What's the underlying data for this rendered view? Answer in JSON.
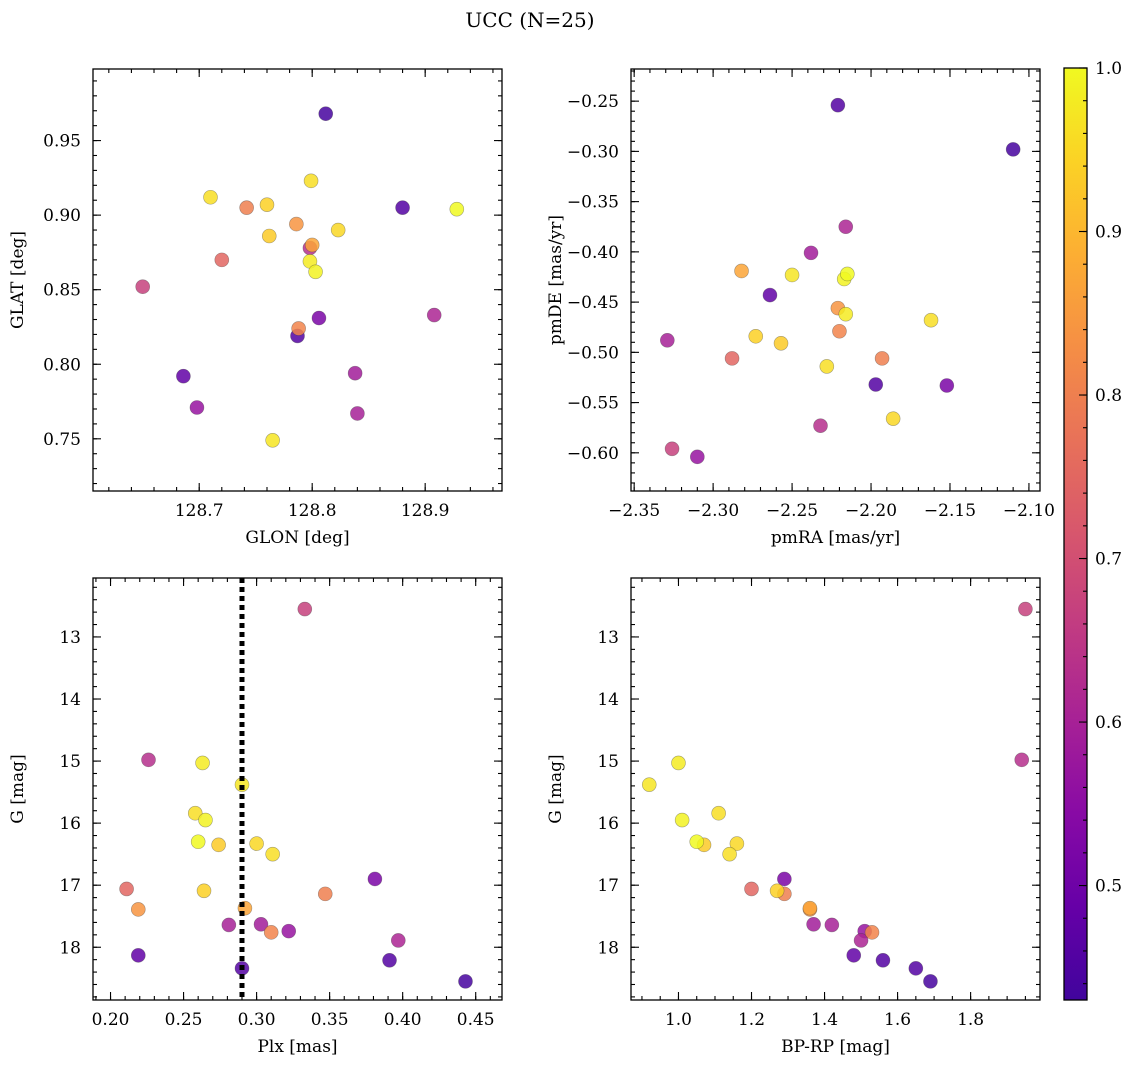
{
  "chart_data": [
    {
      "type": "scatter",
      "title": "UCC (N=25)",
      "colorbar": {
        "ticks": [
          "0.5",
          "0.6",
          "0.7",
          "0.8",
          "0.9",
          "1.0"
        ],
        "range": [
          0.43,
          1.0
        ],
        "colormap": "plasma"
      },
      "points": [
        {
          "glon": 128.812,
          "glat": 0.968,
          "pmra": -2.11,
          "pmde": -0.298,
          "plx": 0.443,
          "g": 18.55,
          "bprp": 1.69,
          "p": 0.44
        },
        {
          "glon": 128.88,
          "glat": 0.905,
          "pmra": -2.221,
          "pmde": -0.254,
          "plx": 0.391,
          "g": 18.21,
          "bprp": 1.56,
          "p": 0.46
        },
        {
          "glon": 128.787,
          "glat": 0.819,
          "pmra": -2.197,
          "pmde": -0.532,
          "plx": 0.29,
          "g": 18.34,
          "bprp": 1.65,
          "p": 0.46
        },
        {
          "glon": 128.686,
          "glat": 0.792,
          "pmra": -2.264,
          "pmde": -0.443,
          "plx": 0.219,
          "g": 18.13,
          "bprp": 1.48,
          "p": 0.48
        },
        {
          "glon": 128.806,
          "glat": 0.831,
          "pmra": -2.152,
          "pmde": -0.533,
          "plx": 0.381,
          "g": 16.9,
          "bprp": 1.29,
          "p": 0.52
        },
        {
          "glon": 128.698,
          "glat": 0.771,
          "pmra": -2.31,
          "pmde": -0.604,
          "plx": 0.322,
          "g": 17.74,
          "bprp": 1.51,
          "p": 0.57
        },
        {
          "glon": 128.838,
          "glat": 0.794,
          "pmra": -2.238,
          "pmde": -0.401,
          "plx": 0.303,
          "g": 17.63,
          "bprp": 1.37,
          "p": 0.59
        },
        {
          "glon": 128.84,
          "glat": 0.767,
          "pmra": -2.329,
          "pmde": -0.488,
          "plx": 0.281,
          "g": 17.64,
          "bprp": 1.42,
          "p": 0.6
        },
        {
          "glon": 128.908,
          "glat": 0.833,
          "pmra": -2.216,
          "pmde": -0.375,
          "plx": 0.397,
          "g": 17.89,
          "bprp": 1.5,
          "p": 0.61
        },
        {
          "glon": 128.798,
          "glat": 0.878,
          "pmra": -2.232,
          "pmde": -0.573,
          "plx": 0.226,
          "g": 14.98,
          "bprp": 1.94,
          "p": 0.63
        },
        {
          "glon": 128.65,
          "glat": 0.852,
          "pmra": -2.326,
          "pmde": -0.596,
          "plx": 0.333,
          "g": 12.55,
          "bprp": 1.95,
          "p": 0.67
        },
        {
          "glon": 128.72,
          "glat": 0.87,
          "pmra": -2.288,
          "pmde": -0.506,
          "plx": 0.211,
          "g": 17.06,
          "bprp": 1.2,
          "p": 0.75
        },
        {
          "glon": 128.742,
          "glat": 0.905,
          "pmra": -2.193,
          "pmde": -0.506,
          "plx": 0.347,
          "g": 17.14,
          "bprp": 1.29,
          "p": 0.8
        },
        {
          "glon": 128.788,
          "glat": 0.824,
          "pmra": -2.22,
          "pmde": -0.479,
          "plx": 0.31,
          "g": 17.76,
          "bprp": 1.53,
          "p": 0.81
        },
        {
          "glon": 128.786,
          "glat": 0.894,
          "pmra": -2.221,
          "pmde": -0.456,
          "plx": 0.219,
          "g": 17.39,
          "bprp": 1.36,
          "p": 0.84
        },
        {
          "glon": 128.8,
          "glat": 0.88,
          "pmra": -2.282,
          "pmde": -0.419,
          "plx": 0.292,
          "g": 17.37,
          "bprp": 1.36,
          "p": 0.87
        },
        {
          "glon": 128.762,
          "glat": 0.886,
          "pmra": -2.257,
          "pmde": -0.491,
          "plx": 0.274,
          "g": 16.35,
          "bprp": 1.07,
          "p": 0.93
        },
        {
          "glon": 128.76,
          "glat": 0.907,
          "pmra": -2.273,
          "pmde": -0.484,
          "plx": 0.264,
          "g": 17.09,
          "bprp": 1.27,
          "p": 0.94
        },
        {
          "glon": 128.823,
          "glat": 0.89,
          "pmra": -2.186,
          "pmde": -0.566,
          "plx": 0.3,
          "g": 16.33,
          "bprp": 1.16,
          "p": 0.95
        },
        {
          "glon": 128.71,
          "glat": 0.912,
          "pmra": -2.162,
          "pmde": -0.468,
          "plx": 0.258,
          "g": 15.84,
          "bprp": 1.11,
          "p": 0.96
        },
        {
          "glon": 128.799,
          "glat": 0.923,
          "pmra": -2.228,
          "pmde": -0.514,
          "plx": 0.311,
          "g": 16.5,
          "bprp": 1.14,
          "p": 0.96
        },
        {
          "glon": 128.765,
          "glat": 0.749,
          "pmra": -2.25,
          "pmde": -0.423,
          "plx": 0.29,
          "g": 15.38,
          "bprp": 0.92,
          "p": 0.97
        },
        {
          "glon": 128.798,
          "glat": 0.869,
          "pmra": -2.216,
          "pmde": -0.462,
          "plx": 0.263,
          "g": 15.03,
          "bprp": 1.0,
          "p": 0.98
        },
        {
          "glon": 128.803,
          "glat": 0.862,
          "pmra": -2.217,
          "pmde": -0.427,
          "plx": 0.265,
          "g": 15.95,
          "bprp": 1.01,
          "p": 0.99
        },
        {
          "glon": 128.928,
          "glat": 0.904,
          "pmra": -2.215,
          "pmde": -0.422,
          "plx": 0.26,
          "g": 16.3,
          "bprp": 1.05,
          "p": 1.0
        }
      ],
      "panels": [
        {
          "id": "glon-glat",
          "xkey": "glon",
          "ykey": "glat",
          "xlabel": "GLON [deg]",
          "ylabel": "GLAT [deg]",
          "xlim": [
            128.606,
            128.968
          ],
          "ylim": [
            0.715,
            0.998
          ],
          "yinvert": false,
          "xticks": [
            128.7,
            128.8,
            128.9
          ],
          "xtick_labels": [
            "128.7",
            "128.8",
            "128.9"
          ],
          "yticks": [
            0.75,
            0.8,
            0.85,
            0.9,
            0.95
          ],
          "ytick_labels": [
            "0.75",
            "0.80",
            "0.85",
            "0.90",
            "0.95"
          ],
          "xminor": 0.02,
          "yminor": 0.01
        },
        {
          "id": "pmra-pmde",
          "xkey": "pmra",
          "ykey": "pmde",
          "xlabel": "pmRA [mas/yr]",
          "ylabel": "pmDE [mas/yr]",
          "xlim": [
            -2.352,
            -2.093
          ],
          "ylim": [
            -0.638,
            -0.218
          ],
          "yinvert": false,
          "xticks": [
            -2.35,
            -2.3,
            -2.25,
            -2.2,
            -2.15,
            -2.1
          ],
          "xtick_labels": [
            "−2.35",
            "−2.30",
            "−2.25",
            "−2.20",
            "−2.15",
            "−2.10"
          ],
          "yticks": [
            -0.6,
            -0.55,
            -0.5,
            -0.45,
            -0.4,
            -0.35,
            -0.3,
            -0.25
          ],
          "ytick_labels": [
            "−0.60",
            "−0.55",
            "−0.50",
            "−0.45",
            "−0.40",
            "−0.35",
            "−0.30",
            "−0.25"
          ],
          "xminor": 0.01,
          "yminor": 0.01
        },
        {
          "id": "plx-g",
          "xkey": "plx",
          "ykey": "g",
          "xlabel": "Plx [mas]",
          "ylabel": "G [mag]",
          "xlim": [
            0.188,
            0.468
          ],
          "ylim": [
            12.05,
            18.85
          ],
          "yinvert": true,
          "xticks": [
            0.2,
            0.25,
            0.3,
            0.35,
            0.4,
            0.45
          ],
          "xtick_labels": [
            "0.20",
            "0.25",
            "0.30",
            "0.35",
            "0.40",
            "0.45"
          ],
          "yticks": [
            13,
            14,
            15,
            16,
            17,
            18
          ],
          "ytick_labels": [
            "13",
            "14",
            "15",
            "16",
            "17",
            "18"
          ],
          "xminor": 0.01,
          "yminor": 0.2,
          "vline": 0.29
        },
        {
          "id": "bprp-g",
          "xkey": "bprp",
          "ykey": "g",
          "xlabel": "BP-RP [mag]",
          "ylabel": "G [mag]",
          "xlim": [
            0.87,
            1.99
          ],
          "ylim": [
            12.05,
            18.85
          ],
          "yinvert": true,
          "xticks": [
            1.0,
            1.2,
            1.4,
            1.6,
            1.8
          ],
          "xtick_labels": [
            "1.0",
            "1.2",
            "1.4",
            "1.6",
            "1.8"
          ],
          "yticks": [
            13,
            14,
            15,
            16,
            17,
            18
          ],
          "ytick_labels": [
            "13",
            "14",
            "15",
            "16",
            "17",
            "18"
          ],
          "xminor": 0.05,
          "yminor": 0.2
        }
      ]
    }
  ]
}
